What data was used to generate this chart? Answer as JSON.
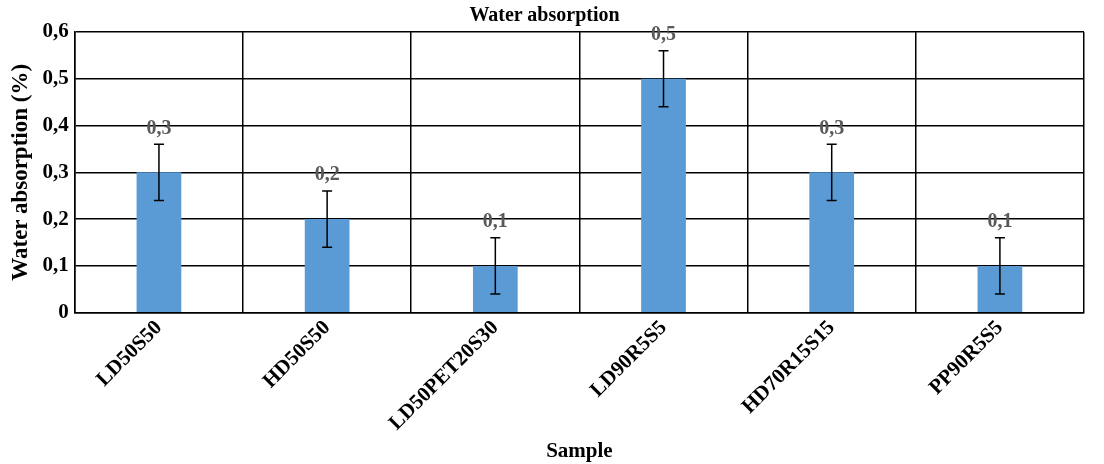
{
  "chart_data": {
    "type": "bar",
    "title": "Water absorption",
    "xlabel": "Sample",
    "ylabel": "Water absorption (%)",
    "categories": [
      "LD50S50",
      "HD50S50",
      "LD50PET20S30",
      "LD90R5S5",
      "HD70R15S15",
      "PP90R5S5"
    ],
    "values": [
      0.3,
      0.2,
      0.1,
      0.5,
      0.3,
      0.1
    ],
    "errors": [
      0.06,
      0.06,
      0.06,
      0.06,
      0.06,
      0.06
    ],
    "value_labels": [
      "0,3",
      "0,2",
      "0,1",
      "0,5",
      "0,3",
      "0,1"
    ],
    "color": "#5b9bd5",
    "ylim": [
      0,
      0.6
    ],
    "yticks": [
      {
        "value": 0,
        "label": "0"
      },
      {
        "value": 0.1,
        "label": "0,1"
      },
      {
        "value": 0.2,
        "label": "0,2"
      },
      {
        "value": 0.3,
        "label": "0,3"
      },
      {
        "value": 0.4,
        "label": "0,4"
      },
      {
        "value": 0.5,
        "label": "0,5"
      },
      {
        "value": 0.6,
        "label": "0,6"
      }
    ],
    "grid": true,
    "legend": false
  }
}
